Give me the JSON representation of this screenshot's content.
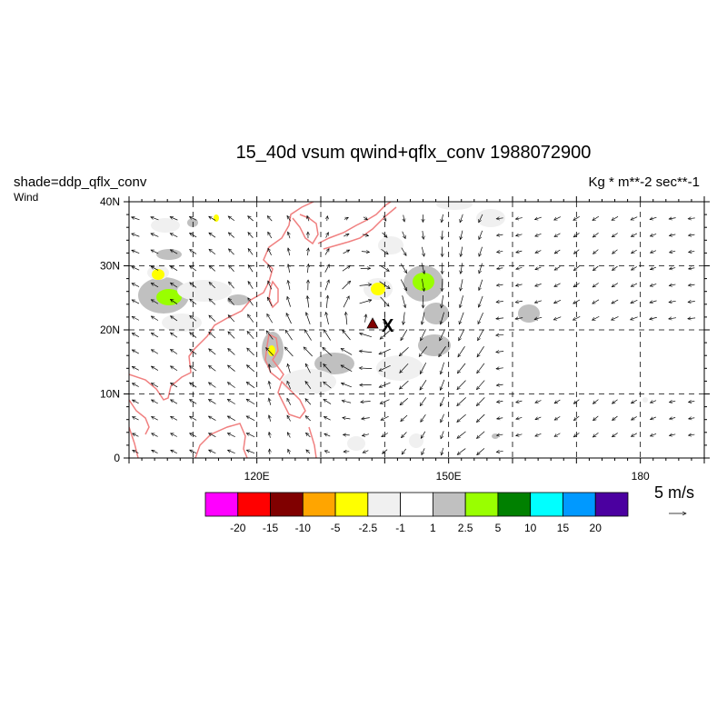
{
  "title": "15_40d vsum qwind+qflx_conv  1988072900",
  "left_label": "shade=ddp_qflx_conv",
  "left_sublabel": "Wind",
  "units_label": "Kg  * m**-2 sec**-1",
  "vector_reference": {
    "label": "5 m/s"
  },
  "marker": {
    "symbol": "X"
  },
  "map": {
    "lon_range": [
      100,
      190
    ],
    "lat_range": [
      0,
      40
    ],
    "lat_ticks": [
      {
        "value": 0,
        "label": "0"
      },
      {
        "value": 10,
        "label": "10N"
      },
      {
        "value": 20,
        "label": "20N"
      },
      {
        "value": 30,
        "label": "30N"
      },
      {
        "value": 40,
        "label": "40N"
      }
    ],
    "lon_ticks": [
      {
        "value": 120,
        "label": "120E"
      },
      {
        "value": 150,
        "label": "150E"
      },
      {
        "value": 180,
        "label": "180"
      }
    ],
    "grid_lons": [
      110,
      120,
      130,
      140,
      150,
      160,
      170,
      180
    ],
    "grid_lats": [
      10,
      20,
      30
    ]
  },
  "colorbar": {
    "colors": [
      "#ff00ff",
      "#ff0000",
      "#800000",
      "#ffa500",
      "#ffff00",
      "#f0f0f0",
      "#ffffff",
      "#c0c0c0",
      "#99ff00",
      "#008000",
      "#00ffff",
      "#0099ff",
      "#4b00a0"
    ],
    "labels": [
      "-20",
      "-15",
      "-10",
      "-5",
      "-2.5",
      "-1",
      "1",
      "2.5",
      "5",
      "10",
      "15",
      "20"
    ]
  },
  "colors": {
    "coastline": "#f08080",
    "grid": "#000000"
  }
}
